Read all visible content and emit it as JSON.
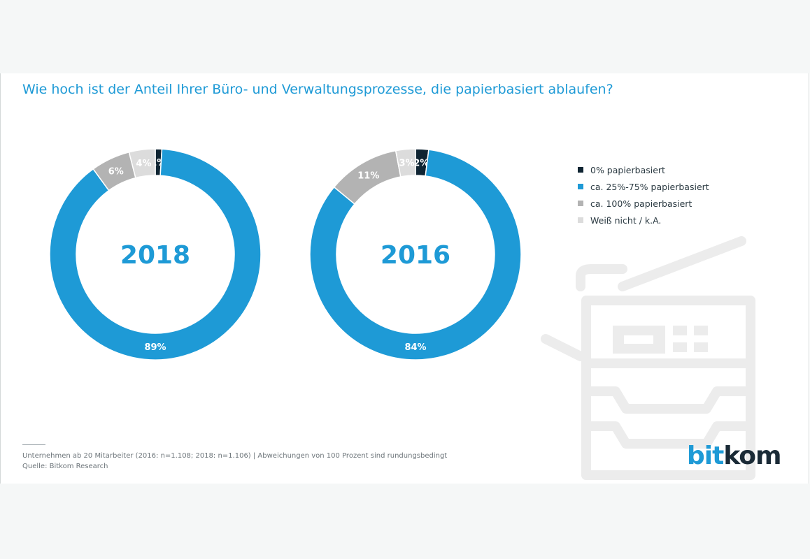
{
  "title": "Wie hoch ist der Anteil Ihrer Büro- und Verwaltungsprozesse, die papierbasiert ablaufen?",
  "colors": {
    "accent": "#1e9ad6",
    "dark": "#0f2432",
    "midgray": "#b3b3b3",
    "lightgray": "#dcdcdc",
    "illustration": "#ececec"
  },
  "chart_data": [
    {
      "type": "pie",
      "variant": "donut",
      "center_label": "2018",
      "categories": [
        "0% papierbasiert",
        "ca. 25%-75% papierbasiert",
        "ca. 100% papierbasiert",
        "Weiß nicht / k.A."
      ],
      "values": [
        1,
        89,
        6,
        4
      ],
      "labels": [
        "1%",
        "89%",
        "6%",
        "4%"
      ]
    },
    {
      "type": "pie",
      "variant": "donut",
      "center_label": "2016",
      "categories": [
        "0% papierbasiert",
        "ca. 25%-75% papierbasiert",
        "ca. 100% papierbasiert",
        "Weiß nicht / k.A."
      ],
      "values": [
        2,
        84,
        11,
        3
      ],
      "labels": [
        "2%",
        "84%",
        "11%",
        "3%"
      ]
    }
  ],
  "legend": [
    {
      "label": "0% papierbasiert",
      "color": "#0f2432"
    },
    {
      "label": "ca. 25%-75% papierbasiert",
      "color": "#1e9ad6"
    },
    {
      "label": "ca. 100% papierbasiert",
      "color": "#b3b3b3"
    },
    {
      "label": "Weiß nicht / k.A.",
      "color": "#dcdcdc"
    }
  ],
  "footer": {
    "note": "Unternehmen ab 20 Mitarbeiter (2016: n=1.108; 2018: n=1.106) | Abweichungen von 100 Prozent sind rundungsbedingt",
    "source": "Quelle: Bitkom Research"
  },
  "logo": {
    "part1": "bit",
    "part2": "kom"
  },
  "illustration_icon": "printer-icon"
}
